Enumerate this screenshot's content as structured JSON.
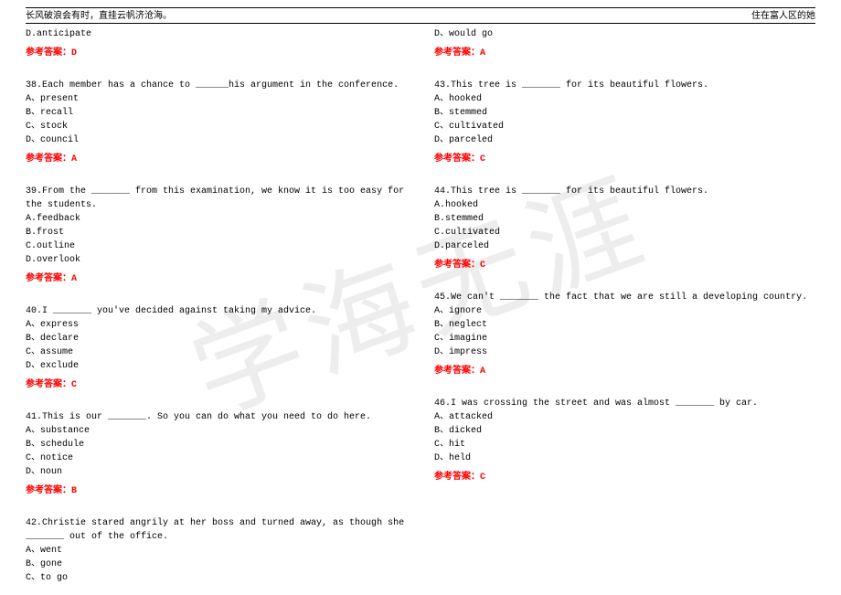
{
  "header": {
    "left": "长风破浪会有时，直挂云帆济沧海。",
    "right": "住在富人区的她"
  },
  "watermark": "学海无涯",
  "answer_label": "参考答案：",
  "colors": {
    "answer": "#ff0000",
    "text": "#000000",
    "background": "#ffffff",
    "watermark": "rgba(0,0,0,0.07)"
  },
  "questions": [
    {
      "pre_lines": [
        "D.anticipate"
      ],
      "answer": "D",
      "stem": null,
      "options": []
    },
    {
      "stem": "38.Each member has a chance to ______his argument in the conference.",
      "options": [
        "A、present",
        "B、recall",
        "C、stock",
        "D、council"
      ],
      "answer": "A"
    },
    {
      "stem": "39.From the _______ from this examination, we know it is too easy for the students.",
      "options": [
        "A.feedback",
        "B.frost",
        "C.outline",
        "D.overlook"
      ],
      "answer": "A"
    },
    {
      "stem": "40.I _______ you've decided against taking my advice.",
      "options": [
        "A、express",
        "B、declare",
        "C、assume",
        "D、exclude"
      ],
      "answer": "C"
    },
    {
      "stem": "41.This is our _______. So you can do what you need to do here.",
      "options": [
        "A、substance",
        "B、schedule",
        "C、notice",
        "D、noun"
      ],
      "answer": "B"
    },
    {
      "stem": "42.Christie stared angrily at her boss and turned away, as though she _______ out of the office.",
      "options": [
        "A、went",
        "B、gone",
        "C、to go",
        "D、would go"
      ],
      "answer": "A"
    },
    {
      "stem": "43.This tree is _______ for its beautiful flowers.",
      "options": [
        "A、hooked",
        "B、stemmed",
        "C、cultivated",
        "D、parceled"
      ],
      "answer": "C"
    },
    {
      "stem": "44.This tree is _______ for its beautiful flowers.",
      "options": [
        "A.hooked",
        "B.stemmed",
        "C.cultivated",
        "D.parceled"
      ],
      "answer": "C"
    },
    {
      "stem": "45.We can't _______ the fact that we are still a developing country.",
      "options": [
        "A、ignore",
        "B、neglect",
        "C、imagine",
        "D、impress"
      ],
      "answer": "A"
    },
    {
      "stem": "46.I was crossing the street and was almost _______ by car.",
      "options": [
        "A、attacked",
        "B、dicked",
        "C、hit",
        "D、held"
      ],
      "answer": "C"
    }
  ]
}
